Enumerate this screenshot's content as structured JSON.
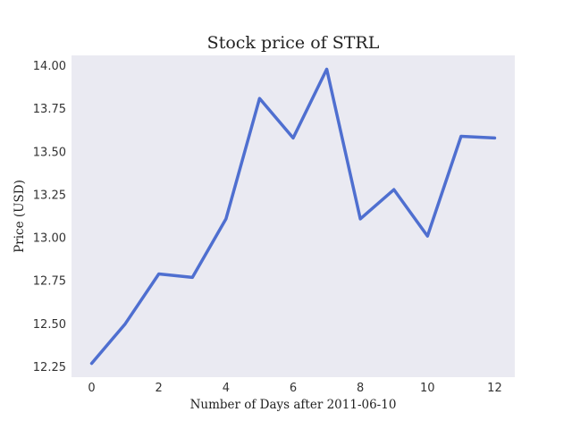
{
  "chart_data": {
    "type": "line",
    "title": "Stock price of STRL",
    "xlabel": "Number of Days after 2011-06-10",
    "ylabel": "Price (USD)",
    "x": [
      0,
      1,
      2,
      3,
      4,
      5,
      6,
      7,
      8,
      9,
      10,
      11,
      12
    ],
    "series": [
      {
        "values": [
          12.27,
          12.5,
          12.79,
          12.77,
          13.11,
          13.81,
          13.58,
          13.98,
          13.11,
          13.28,
          13.01,
          13.59,
          13.58
        ],
        "color": "#4f6fd0"
      }
    ],
    "xlim": [
      -0.6,
      12.6
    ],
    "ylim": [
      12.19,
      14.06
    ],
    "xticks": [
      "0",
      "2",
      "4",
      "6",
      "8",
      "10",
      "12"
    ],
    "yticks": [
      "12.25",
      "12.50",
      "12.75",
      "13.00",
      "13.25",
      "13.50",
      "13.75",
      "14.00"
    ],
    "background": "#eaeaf2",
    "grid": false,
    "legend": "none"
  }
}
